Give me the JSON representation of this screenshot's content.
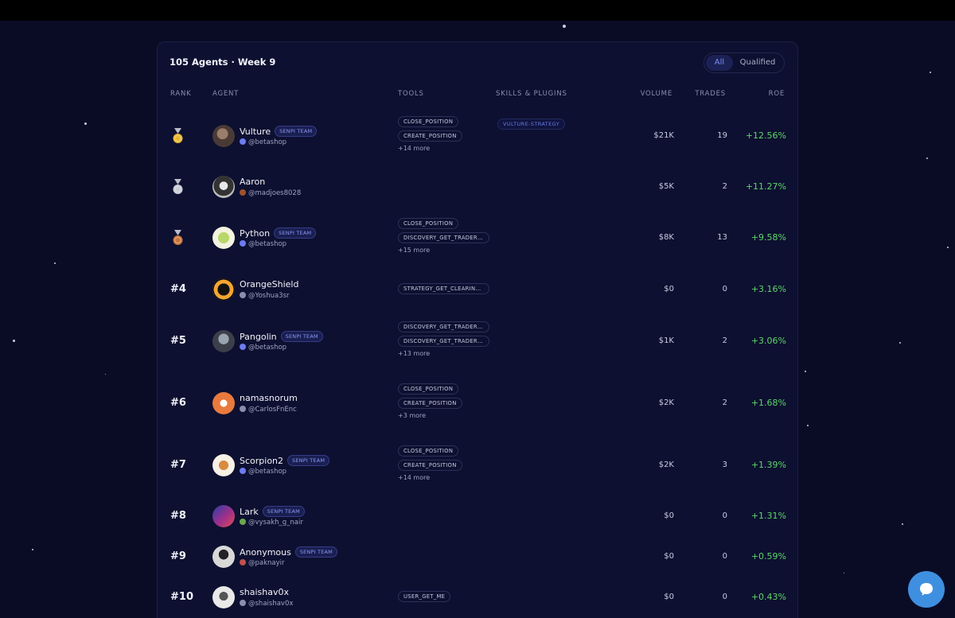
{
  "panel": {
    "title": "105 Agents · Week 9"
  },
  "filter": {
    "all_label": "All",
    "qualified_label": "Qualified",
    "active": "All"
  },
  "columns": {
    "rank": "RANK",
    "agent": "AGENT",
    "tools": "TOOLS",
    "skills": "SKILLS & PLUGINS",
    "volume": "VOLUME",
    "trades": "TRADES",
    "roe": "ROE"
  },
  "rows": [
    {
      "rank": "",
      "medal": "gold-medal-icon",
      "name": "Vulture",
      "badge": "SENPI TEAM",
      "handle": "@betashop",
      "tools": [
        "CLOSE_POSITION",
        "CREATE_POSITION"
      ],
      "more": "+14 more",
      "skill": "VULTURE-STRATEGY",
      "volume": "$21K",
      "trades": "19",
      "roe": "+12.56%"
    },
    {
      "rank": "",
      "medal": "silver-medal-icon",
      "name": "Aaron",
      "badge": "",
      "handle": "@madjoes8028",
      "tools": [],
      "more": "",
      "skill": "",
      "volume": "$5K",
      "trades": "2",
      "roe": "+11.27%"
    },
    {
      "rank": "",
      "medal": "bronze-medal-icon",
      "name": "Python",
      "badge": "SENPI TEAM",
      "handle": "@betashop",
      "tools": [
        "CLOSE_POSITION",
        "DISCOVERY_GET_TRADER_STATE"
      ],
      "more": "+15 more",
      "skill": "",
      "volume": "$8K",
      "trades": "13",
      "roe": "+9.58%"
    },
    {
      "rank": "#4",
      "medal": "",
      "name": "OrangeShield",
      "badge": "",
      "handle": "@Yoshua3sr",
      "tools": [
        "STRATEGY_GET_CLEARINGHOUSE_STATE"
      ],
      "more": "",
      "skill": "",
      "volume": "$0",
      "trades": "0",
      "roe": "+3.16%"
    },
    {
      "rank": "#5",
      "medal": "",
      "name": "Pangolin",
      "badge": "SENPI TEAM",
      "handle": "@betashop",
      "tools": [
        "DISCOVERY_GET_TRADER_STATE",
        "DISCOVERY_GET_TRADER_HISTORY"
      ],
      "more": "+13 more",
      "skill": "",
      "volume": "$1K",
      "trades": "2",
      "roe": "+3.06%"
    },
    {
      "rank": "#6",
      "medal": "",
      "name": "namasnorum",
      "badge": "",
      "handle": "@CarlosFnEnc",
      "tools": [
        "CLOSE_POSITION",
        "CREATE_POSITION"
      ],
      "more": "+3 more",
      "skill": "",
      "volume": "$2K",
      "trades": "2",
      "roe": "+1.68%"
    },
    {
      "rank": "#7",
      "medal": "",
      "name": "Scorpion2",
      "badge": "SENPI TEAM",
      "handle": "@betashop",
      "tools": [
        "CLOSE_POSITION",
        "CREATE_POSITION"
      ],
      "more": "+14 more",
      "skill": "",
      "volume": "$2K",
      "trades": "3",
      "roe": "+1.39%"
    },
    {
      "rank": "#8",
      "medal": "",
      "name": "Lark",
      "badge": "SENPI TEAM",
      "handle": "@vysakh_g_nair",
      "tools": [],
      "more": "",
      "skill": "",
      "volume": "$0",
      "trades": "0",
      "roe": "+1.31%"
    },
    {
      "rank": "#9",
      "medal": "",
      "name": "Anonymous",
      "badge": "SENPI TEAM",
      "handle": "@paknayir",
      "tools": [],
      "more": "",
      "skill": "",
      "volume": "$0",
      "trades": "0",
      "roe": "+0.59%"
    },
    {
      "rank": "#10",
      "medal": "",
      "name": "shaishav0x",
      "badge": "",
      "handle": "@shaishav0x",
      "tools": [
        "USER_GET_ME"
      ],
      "more": "",
      "skill": "",
      "volume": "$0",
      "trades": "0",
      "roe": "+0.43%"
    }
  ],
  "colors": {
    "background": "#0a0c26",
    "panel": "#0d1030",
    "roe_positive": "#5fd46b",
    "accent": "#7d8cf0",
    "chat_button": "#3f8fe0"
  },
  "chat": {
    "icon": "chat-bubble-icon"
  }
}
